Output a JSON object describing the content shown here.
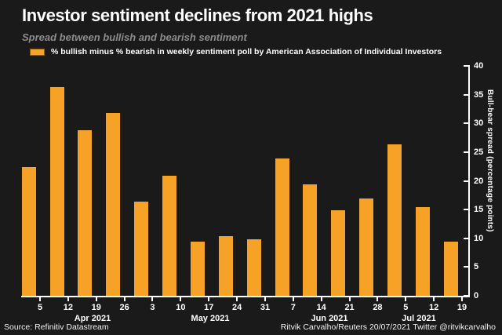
{
  "header": {
    "title": "Investor sentiment declines from 2021 highs",
    "subtitle": "Spread between bullish and bearish sentiment"
  },
  "legend": {
    "label": "% bullish minus % bearish in weekly sentiment poll by American Association of Individual Investors",
    "swatch_color": "#F6A226",
    "swatch_border": "#8A5C0A"
  },
  "footer": {
    "source": "Source: Refinitiv Datastream",
    "credit": "Ritvik Carvalho/Reuters 20/07/2021 Twitter @ritvikcarvalho"
  },
  "colors": {
    "background": "#1A1A1A",
    "bar": "#F6A226",
    "axis": "#FFFFFF",
    "text": "#FFFFFF",
    "subtitle": "#8C8C8C"
  },
  "chart_data": {
    "type": "bar",
    "title": "Investor sentiment declines from 2021 highs",
    "subtitle": "Spread between bullish and bearish sentiment",
    "legend_entries": [
      "% bullish minus % bearish in weekly sentiment poll by American Association of Individual Investors"
    ],
    "legend_position": "top-left",
    "values": [
      22.5,
      36.5,
      29,
      32,
      16.5,
      21,
      9.5,
      10.5,
      10,
      24,
      19.5,
      15,
      17,
      26.5,
      15.5,
      9.5
    ],
    "x_tick_labels": [
      "5",
      "12",
      "19",
      "26",
      "3",
      "10",
      "17",
      "24",
      "31",
      "7",
      "14",
      "21",
      "28",
      "5",
      "12",
      "19"
    ],
    "x_month_labels": [
      "Apr 2021",
      "May 2021",
      "Jun 2021",
      "Jul 2021"
    ],
    "xlabel": "",
    "ylabel": "Bull-bear spread (percentage points)",
    "ylim": [
      0,
      40
    ],
    "y_ticks": [
      0,
      5,
      10,
      15,
      20,
      25,
      30,
      35,
      40
    ],
    "y_axis_side": "right",
    "grid": false,
    "bar_color": "#F6A226"
  }
}
